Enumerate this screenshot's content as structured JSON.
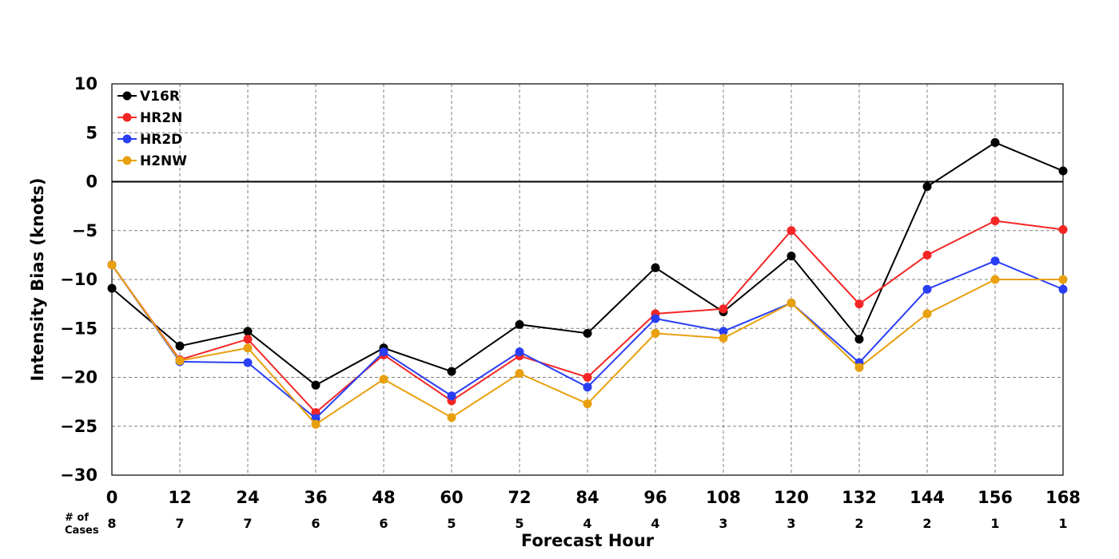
{
  "chart_data": {
    "type": "line",
    "title": "",
    "xlabel": "Forecast Hour",
    "ylabel": "Intensity Bias (knots)",
    "x": [
      0,
      12,
      24,
      36,
      48,
      60,
      72,
      84,
      96,
      108,
      120,
      132,
      144,
      156,
      168
    ],
    "xlim": [
      0,
      168
    ],
    "ylim": [
      -30,
      10
    ],
    "xticks": [
      0,
      12,
      24,
      36,
      48,
      60,
      72,
      84,
      96,
      108,
      120,
      132,
      144,
      156,
      168
    ],
    "yticks": [
      10,
      5,
      0,
      -5,
      -10,
      -15,
      -20,
      -25,
      -30
    ],
    "grid": true,
    "legend_position": "top-left",
    "zero_line": true,
    "cases_label": "# of Cases",
    "cases_label_lines": [
      "# of",
      "Cases"
    ],
    "cases": [
      8,
      7,
      7,
      6,
      6,
      5,
      5,
      4,
      4,
      3,
      3,
      2,
      2,
      1,
      1
    ],
    "series": [
      {
        "name": "V16R",
        "color": "#000000",
        "values": [
          -10.9,
          -16.8,
          -15.3,
          -20.8,
          -17.0,
          -19.4,
          -14.6,
          -15.5,
          -8.8,
          -13.3,
          -7.6,
          -16.1,
          -0.5,
          4.0,
          1.1
        ]
      },
      {
        "name": "HR2N",
        "color": "#f42525",
        "values": [
          -8.5,
          -18.2,
          -16.1,
          -23.6,
          -17.7,
          -22.4,
          -17.8,
          -20.0,
          -13.5,
          -13.0,
          -5.0,
          -12.5,
          -7.5,
          -4.0,
          -4.9
        ]
      },
      {
        "name": "HR2D",
        "color": "#2a3ef5",
        "values": [
          -8.5,
          -18.4,
          -18.5,
          -24.2,
          -17.4,
          -21.9,
          -17.4,
          -21.0,
          -14.0,
          -15.3,
          -12.4,
          -18.5,
          -11.0,
          -8.1,
          -11.0
        ]
      },
      {
        "name": "H2NW",
        "color": "#e8a00e",
        "values": [
          -8.5,
          -18.3,
          -17.0,
          -24.8,
          -20.2,
          -24.1,
          -19.6,
          -22.7,
          -15.5,
          -16.0,
          -12.4,
          -19.0,
          -13.5,
          -10.0,
          -10.0
        ]
      }
    ]
  }
}
